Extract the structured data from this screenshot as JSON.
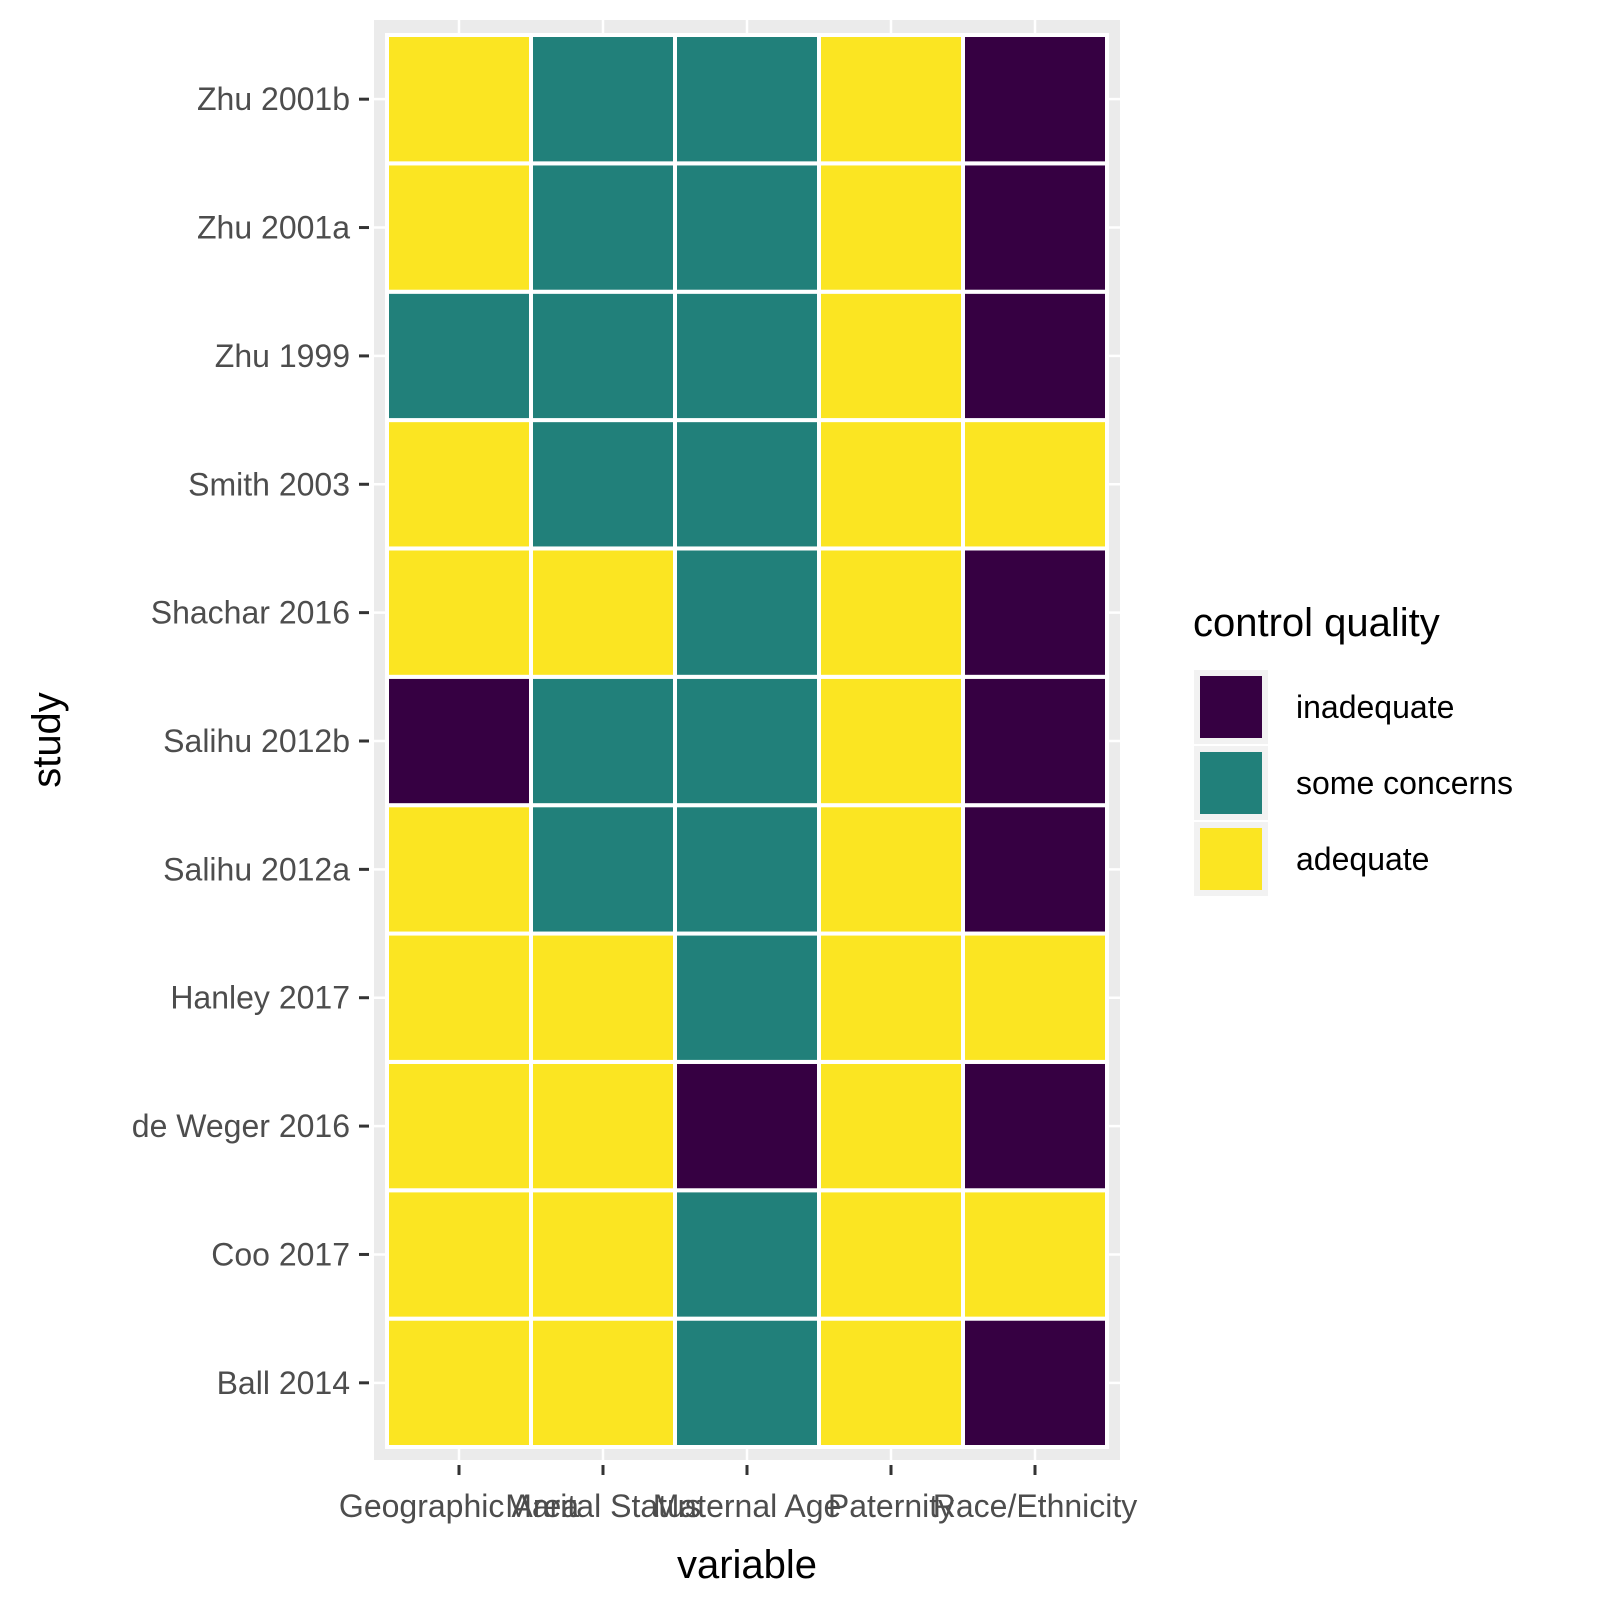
{
  "chart_data": {
    "type": "heatmap",
    "xlabel": "variable",
    "ylabel": "study",
    "x_categories": [
      "Geographic Area",
      "Marital Status",
      "Maternal Age",
      "Paternity",
      "Race/Ethnicity"
    ],
    "y_categories": [
      "Ball 2014",
      "Coo 2017",
      "de Weger 2016",
      "Hanley 2017",
      "Salihu 2012a",
      "Salihu 2012b",
      "Shachar 2016",
      "Smith 2003",
      "Zhu 1999",
      "Zhu 2001a",
      "Zhu 2001b"
    ],
    "cells": [
      {
        "study": "Ball 2014",
        "values": [
          "adequate",
          "adequate",
          "some concerns",
          "adequate",
          "inadequate"
        ]
      },
      {
        "study": "Coo 2017",
        "values": [
          "adequate",
          "adequate",
          "some concerns",
          "adequate",
          "adequate"
        ]
      },
      {
        "study": "de Weger 2016",
        "values": [
          "adequate",
          "adequate",
          "inadequate",
          "adequate",
          "inadequate"
        ]
      },
      {
        "study": "Hanley 2017",
        "values": [
          "adequate",
          "adequate",
          "some concerns",
          "adequate",
          "adequate"
        ]
      },
      {
        "study": "Salihu 2012a",
        "values": [
          "adequate",
          "some concerns",
          "some concerns",
          "adequate",
          "inadequate"
        ]
      },
      {
        "study": "Salihu 2012b",
        "values": [
          "inadequate",
          "some concerns",
          "some concerns",
          "adequate",
          "inadequate"
        ]
      },
      {
        "study": "Shachar 2016",
        "values": [
          "adequate",
          "adequate",
          "some concerns",
          "adequate",
          "inadequate"
        ]
      },
      {
        "study": "Smith 2003",
        "values": [
          "adequate",
          "some concerns",
          "some concerns",
          "adequate",
          "adequate"
        ]
      },
      {
        "study": "Zhu 1999",
        "values": [
          "some concerns",
          "some concerns",
          "some concerns",
          "adequate",
          "inadequate"
        ]
      },
      {
        "study": "Zhu 2001a",
        "values": [
          "adequate",
          "some concerns",
          "some concerns",
          "adequate",
          "inadequate"
        ]
      },
      {
        "study": "Zhu 2001b",
        "values": [
          "adequate",
          "some concerns",
          "some concerns",
          "adequate",
          "inadequate"
        ]
      }
    ],
    "legend": {
      "title": "control quality",
      "position": "right",
      "entries": [
        {
          "label": "inadequate",
          "color": "#360042"
        },
        {
          "label": "some concerns",
          "color": "#21807a"
        },
        {
          "label": "adequate",
          "color": "#fbe522"
        }
      ]
    },
    "grid": true
  }
}
